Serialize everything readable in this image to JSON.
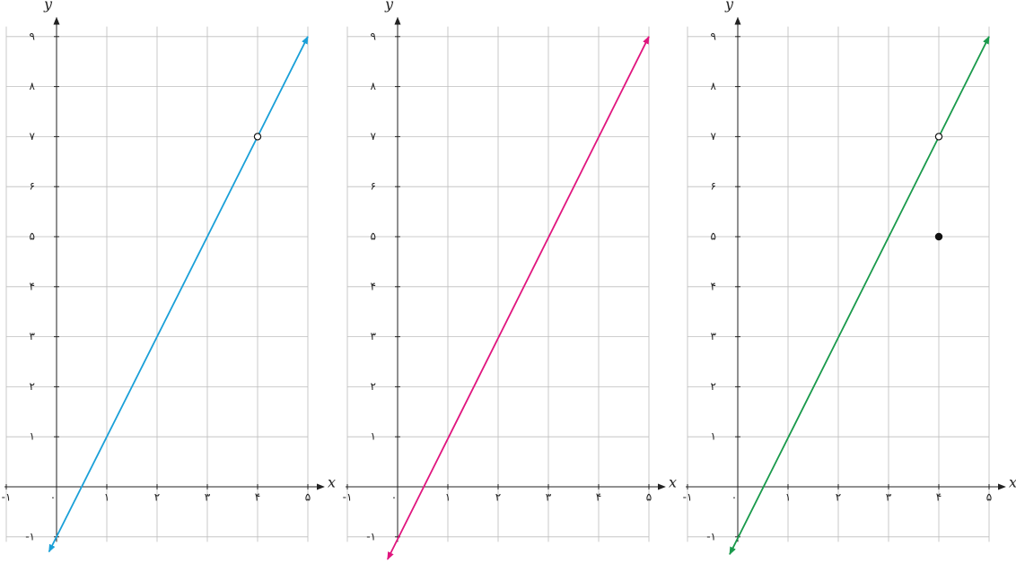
{
  "chart_data": [
    {
      "type": "line",
      "xlabel": "x",
      "ylabel": "y",
      "color": "#1aa0d8",
      "x": [
        -0.15,
        5
      ],
      "values": [
        -1.3,
        9
      ],
      "points": [
        {
          "x": 4,
          "y": 7,
          "style": "open"
        }
      ],
      "xlim": [
        -1,
        5
      ],
      "ylim": [
        -1.1,
        9.2
      ],
      "xticks": [
        {
          "value": -1,
          "label": "-۱"
        },
        {
          "value": 0,
          "label": "۰"
        },
        {
          "value": 1,
          "label": "۱"
        },
        {
          "value": 2,
          "label": "۲"
        },
        {
          "value": 3,
          "label": "۳"
        },
        {
          "value": 4,
          "label": "۴"
        },
        {
          "value": 5,
          "label": "۵"
        }
      ],
      "yticks": [
        {
          "value": -1,
          "label": "-۱"
        },
        {
          "value": 1,
          "label": "۱"
        },
        {
          "value": 2,
          "label": "۲"
        },
        {
          "value": 3,
          "label": "۳"
        },
        {
          "value": 4,
          "label": "۴"
        },
        {
          "value": 5,
          "label": "۵"
        },
        {
          "value": 6,
          "label": "۶"
        },
        {
          "value": 7,
          "label": "۷"
        },
        {
          "value": 8,
          "label": "۸"
        },
        {
          "value": 9,
          "label": "۹"
        }
      ],
      "grid": true
    },
    {
      "type": "line",
      "xlabel": "x",
      "ylabel": "y",
      "color": "#e0157e",
      "x": [
        -0.2,
        5
      ],
      "values": [
        -1.45,
        9
      ],
      "points": [],
      "xlim": [
        -1,
        5
      ],
      "ylim": [
        -1.1,
        9.2
      ],
      "xticks": [
        {
          "value": -1,
          "label": "-۱"
        },
        {
          "value": 0,
          "label": "۰"
        },
        {
          "value": 1,
          "label": "۱"
        },
        {
          "value": 2,
          "label": "۲"
        },
        {
          "value": 3,
          "label": "۳"
        },
        {
          "value": 4,
          "label": "۴"
        },
        {
          "value": 5,
          "label": "۵"
        }
      ],
      "yticks": [
        {
          "value": -1,
          "label": "-۱"
        },
        {
          "value": 1,
          "label": "۱"
        },
        {
          "value": 2,
          "label": "۲"
        },
        {
          "value": 3,
          "label": "۳"
        },
        {
          "value": 4,
          "label": "۴"
        },
        {
          "value": 5,
          "label": "۵"
        },
        {
          "value": 6,
          "label": "۶"
        },
        {
          "value": 7,
          "label": "۷"
        },
        {
          "value": 8,
          "label": "۸"
        },
        {
          "value": 9,
          "label": "۹"
        }
      ],
      "grid": true
    },
    {
      "type": "line",
      "xlabel": "x",
      "ylabel": "y",
      "color": "#1a9a4c",
      "x": [
        -0.16,
        5
      ],
      "values": [
        -1.35,
        9
      ],
      "points": [
        {
          "x": 4,
          "y": 7,
          "style": "open"
        },
        {
          "x": 4,
          "y": 5,
          "style": "filled"
        }
      ],
      "xlim": [
        -1,
        5
      ],
      "ylim": [
        -1.1,
        9.2
      ],
      "xticks": [
        {
          "value": -1,
          "label": "-۱"
        },
        {
          "value": 0,
          "label": "۰"
        },
        {
          "value": 1,
          "label": "۱"
        },
        {
          "value": 2,
          "label": "۲"
        },
        {
          "value": 3,
          "label": "۳"
        },
        {
          "value": 4,
          "label": "۴"
        },
        {
          "value": 5,
          "label": "۵"
        }
      ],
      "yticks": [
        {
          "value": -1,
          "label": "-۱"
        },
        {
          "value": 1,
          "label": "۱"
        },
        {
          "value": 2,
          "label": "۲"
        },
        {
          "value": 3,
          "label": "۳"
        },
        {
          "value": 4,
          "label": "۴"
        },
        {
          "value": 5,
          "label": "۵"
        },
        {
          "value": 6,
          "label": "۶"
        },
        {
          "value": 7,
          "label": "۷"
        },
        {
          "value": 8,
          "label": "۸"
        },
        {
          "value": 9,
          "label": "۹"
        }
      ],
      "grid": true
    }
  ]
}
